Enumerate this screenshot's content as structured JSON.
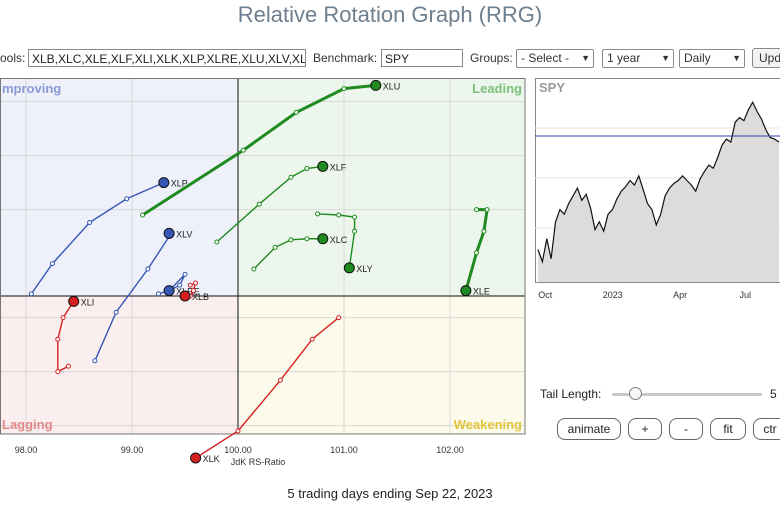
{
  "title": "Relative Rotation Graph (RRG)",
  "toolbar": {
    "symbols_label": "ools:",
    "symbols_value": "XLB,XLC,XLE,XLF,XLI,XLK,XLP,XLRE,XLU,XLV,XL",
    "benchmark_label": "Benchmark:",
    "benchmark_value": "SPY",
    "groups_label": "Groups:",
    "groups_value": "- Select -",
    "period_value": "1 year",
    "frequency_value": "Daily",
    "update_label": "Upd"
  },
  "quadrants": {
    "improving": "mproving",
    "leading": "Leading",
    "lagging": "Lagging",
    "weakening": "Weakening"
  },
  "quadrant_colors": {
    "improving_bg": "#eef0fa",
    "leading_bg": "#ecf6ec",
    "lagging_bg": "#fbeeee",
    "weakening_bg": "#fbfaeb",
    "improving_text": "#8a9ad6",
    "leading_text": "#7cc07c",
    "lagging_text": "#e08a8a",
    "weakening_text": "#e0c63c"
  },
  "chart_data": {
    "type": "scatter",
    "xlabel": "JdK RS-Ratio",
    "ylabel": "",
    "x_ticks": [
      "98.00",
      "99.00",
      "100.00",
      "101.00",
      "102.00"
    ],
    "xlim": [
      97.8,
      102.7
    ],
    "ylim": [
      97.7,
      101.75
    ],
    "center": [
      100,
      99.7
    ],
    "series": [
      {
        "name": "XLU",
        "color": "#1f8a1f",
        "points": [
          [
            99.1,
            100.45
          ],
          [
            100.05,
            101.05
          ],
          [
            100.55,
            101.4
          ],
          [
            101.0,
            101.62
          ],
          [
            101.3,
            101.65
          ]
        ]
      },
      {
        "name": "XLF",
        "color": "#1f8a1f",
        "points": [
          [
            99.8,
            100.2
          ],
          [
            100.2,
            100.55
          ],
          [
            100.5,
            100.8
          ],
          [
            100.65,
            100.88
          ],
          [
            100.8,
            100.9
          ]
        ]
      },
      {
        "name": "XLC",
        "color": "#1f8a1f",
        "points": [
          [
            100.15,
            99.95
          ],
          [
            100.35,
            100.15
          ],
          [
            100.5,
            100.22
          ],
          [
            100.65,
            100.23
          ],
          [
            100.8,
            100.23
          ]
        ]
      },
      {
        "name": "XLY",
        "color": "#1f8a1f",
        "points": [
          [
            100.75,
            100.46
          ],
          [
            100.95,
            100.45
          ],
          [
            101.1,
            100.43
          ],
          [
            101.1,
            100.3
          ],
          [
            101.05,
            99.96
          ]
        ]
      },
      {
        "name": "XLE",
        "color": "#1f8a1f",
        "points": [
          [
            102.25,
            100.5
          ],
          [
            102.35,
            100.5
          ],
          [
            102.32,
            100.3
          ],
          [
            102.25,
            100.1
          ],
          [
            102.15,
            99.75
          ]
        ]
      },
      {
        "name": "XLP",
        "color": "#3557b5",
        "points": [
          [
            98.05,
            99.72
          ],
          [
            98.25,
            100.0
          ],
          [
            98.6,
            100.38
          ],
          [
            98.95,
            100.6
          ],
          [
            99.3,
            100.75
          ]
        ]
      },
      {
        "name": "XLV",
        "color": "#3557b5",
        "points": [
          [
            98.65,
            99.1
          ],
          [
            98.85,
            99.55
          ],
          [
            99.15,
            99.95
          ],
          [
            99.35,
            100.25
          ],
          [
            99.35,
            100.28
          ]
        ]
      },
      {
        "name": "XLRE",
        "color": "#3557b5",
        "points": [
          [
            99.25,
            99.72
          ],
          [
            99.35,
            99.75
          ],
          [
            99.45,
            99.8
          ],
          [
            99.5,
            99.9
          ],
          [
            99.35,
            99.75
          ]
        ]
      },
      {
        "name": "XLB",
        "color": "#d62020",
        "points": [
          [
            99.55,
            99.8
          ],
          [
            99.6,
            99.82
          ],
          [
            99.58,
            99.75
          ],
          [
            99.55,
            99.7
          ],
          [
            99.5,
            99.7
          ]
        ]
      },
      {
        "name": "XLI",
        "color": "#d62020",
        "points": [
          [
            98.4,
            99.05
          ],
          [
            98.3,
            99.0
          ],
          [
            98.3,
            99.3
          ],
          [
            98.35,
            99.5
          ],
          [
            98.45,
            99.65
          ]
        ]
      },
      {
        "name": "XLK",
        "color": "#d62020",
        "points": [
          [
            100.95,
            99.5
          ],
          [
            100.7,
            99.3
          ],
          [
            100.4,
            98.92
          ],
          [
            100.0,
            98.45
          ],
          [
            99.6,
            98.2
          ]
        ]
      }
    ]
  },
  "spy_chart": {
    "symbol": "SPY",
    "x_ticks": [
      "Oct",
      "2023",
      "Apr",
      "Jul"
    ],
    "reference_value": 440,
    "ylim": [
      350,
      470
    ],
    "prices": [
      366,
      358,
      373,
      360,
      384,
      392,
      389,
      396,
      401,
      406,
      398,
      402,
      393,
      379,
      384,
      378,
      389,
      392,
      399,
      404,
      407,
      411,
      408,
      414,
      405,
      396,
      392,
      382,
      389,
      401,
      406,
      409,
      411,
      414,
      411,
      408,
      404,
      412,
      417,
      421,
      419,
      426,
      434,
      438,
      436,
      449,
      452,
      450,
      457,
      462,
      456,
      451,
      444,
      439,
      438,
      436
    ]
  },
  "tail": {
    "label": "Tail Length:",
    "value": "5",
    "fraction": 0.15
  },
  "controls": {
    "animate": "animate",
    "plus": "+",
    "minus": "-",
    "fit": "fit",
    "ctr": "ctr"
  },
  "status": "5 trading days ending Sep 22, 2023"
}
